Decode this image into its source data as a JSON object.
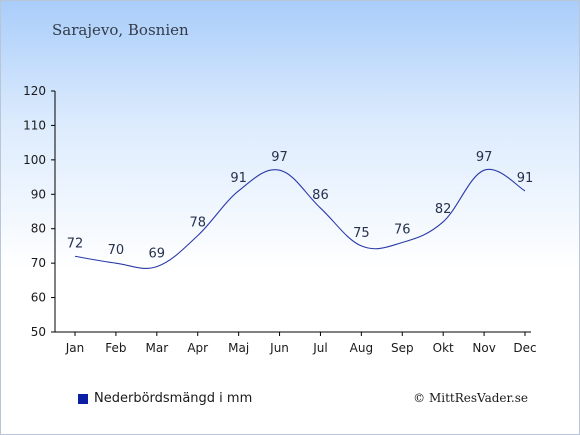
{
  "header": {
    "title": "Sarajevo, Bosnien"
  },
  "legend": {
    "label": "Nederbördsmängd i mm",
    "swatch_color": "#0b1fa3"
  },
  "credit": {
    "text": "© MittResVader.se"
  },
  "chart_data": {
    "type": "line",
    "categories": [
      "Jan",
      "Feb",
      "Mar",
      "Apr",
      "Maj",
      "Jun",
      "Jul",
      "Aug",
      "Sep",
      "Okt",
      "Nov",
      "Dec"
    ],
    "values": [
      72,
      70,
      69,
      78,
      91,
      97,
      86,
      75,
      76,
      82,
      97,
      91
    ],
    "title": "",
    "xlabel": "",
    "ylabel": "",
    "ylim": [
      50,
      120
    ],
    "yticks": [
      50,
      60,
      70,
      80,
      90,
      100,
      110,
      120
    ],
    "line_color": "#2b3aa8",
    "grid": false,
    "legend_position": "bottom-left"
  }
}
